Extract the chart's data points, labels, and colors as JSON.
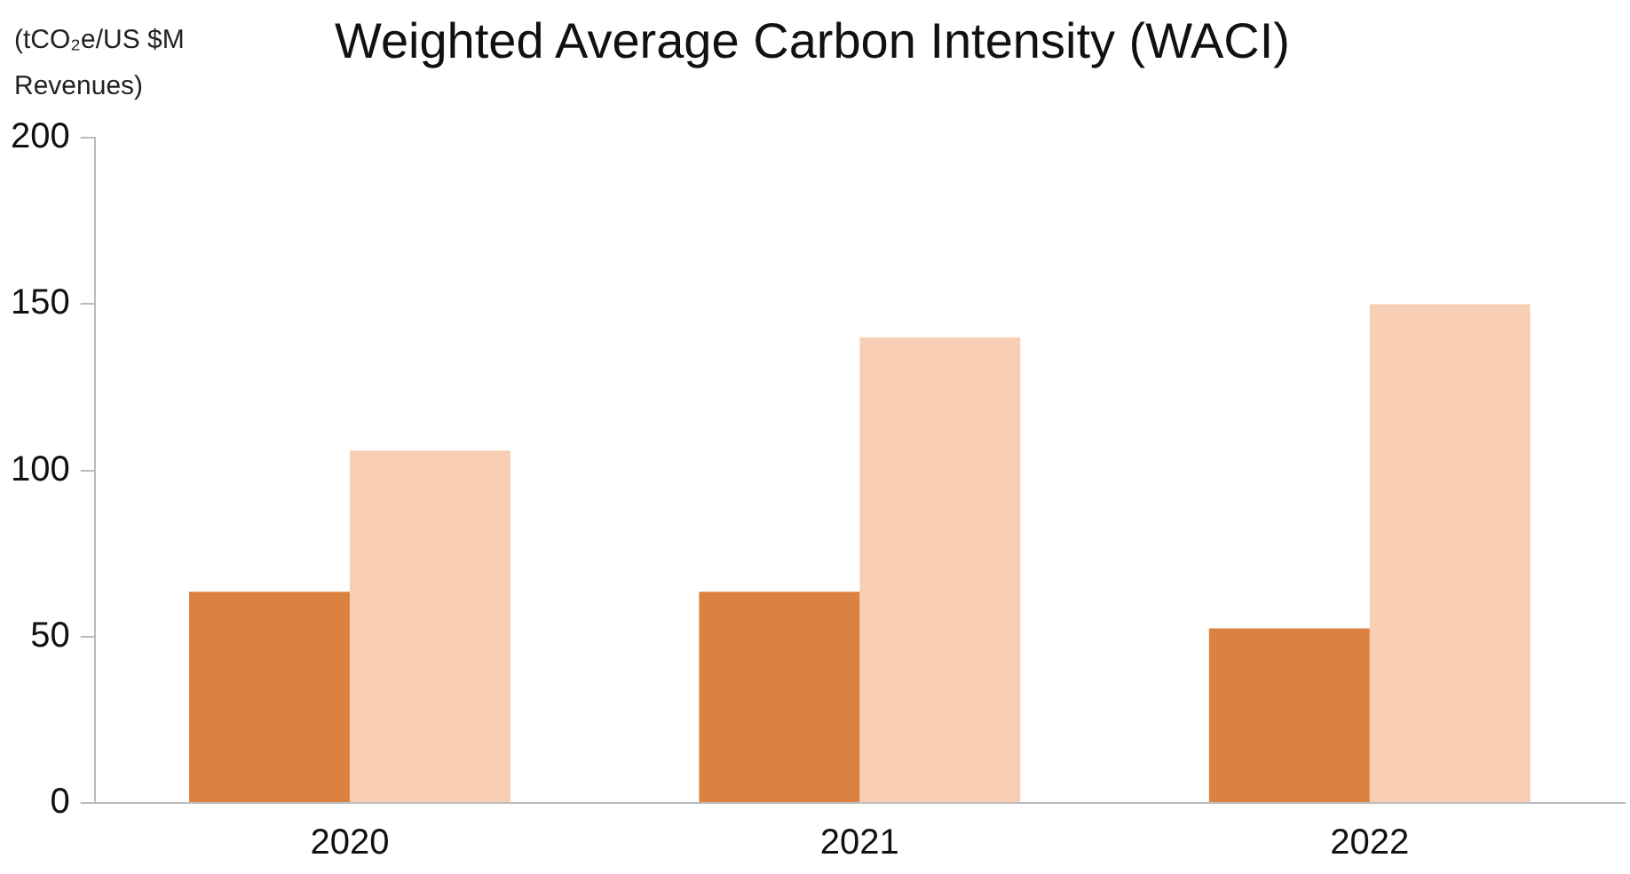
{
  "chart_data": {
    "type": "bar",
    "title": "Weighted Average Carbon Intensity (WACI)",
    "ylabel": "(tCO₂e/US $M Revenues)",
    "categories": [
      "2020",
      "2021",
      "2022"
    ],
    "series": [
      {
        "color": "#dc8241",
        "values": [
          63.5,
          63.5,
          52.5
        ]
      },
      {
        "color": "#f8cfb5",
        "values": [
          106,
          140,
          150
        ]
      }
    ],
    "ylim": [
      0,
      200
    ],
    "yticks": [
      0,
      50,
      100,
      150,
      200
    ],
    "grid": false,
    "legend": false
  }
}
